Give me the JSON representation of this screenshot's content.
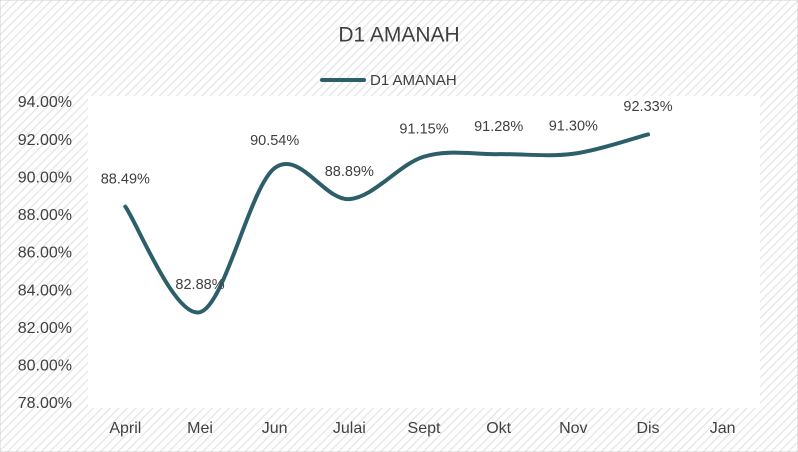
{
  "chart_data": {
    "type": "line",
    "title": "D1 AMANAH",
    "categories": [
      "April",
      "Mei",
      "Jun",
      "Julai",
      "Sept",
      "Okt",
      "Nov",
      "Dis",
      "Jan"
    ],
    "series": [
      {
        "name": "D1 AMANAH",
        "color": "#2d5f6b",
        "values": [
          88.49,
          82.88,
          90.54,
          88.89,
          91.15,
          91.28,
          91.3,
          92.33,
          null
        ],
        "value_labels": [
          "88.49%",
          "82.88%",
          "90.54%",
          "88.89%",
          "91.15%",
          "91.28%",
          "91.30%",
          "92.33%",
          null
        ]
      }
    ],
    "ylim": [
      78,
      94
    ],
    "yticks": [
      {
        "value": 78,
        "label": "78.00%"
      },
      {
        "value": 80,
        "label": "80.00%"
      },
      {
        "value": 82,
        "label": "82.00%"
      },
      {
        "value": 84,
        "label": "84.00%"
      },
      {
        "value": 86,
        "label": "86.00%"
      },
      {
        "value": 88,
        "label": "88.00%"
      },
      {
        "value": 90,
        "label": "90.00%"
      },
      {
        "value": 92,
        "label": "92.00%"
      },
      {
        "value": 94,
        "label": "94.00%"
      }
    ],
    "smooth": true,
    "grid": false
  }
}
